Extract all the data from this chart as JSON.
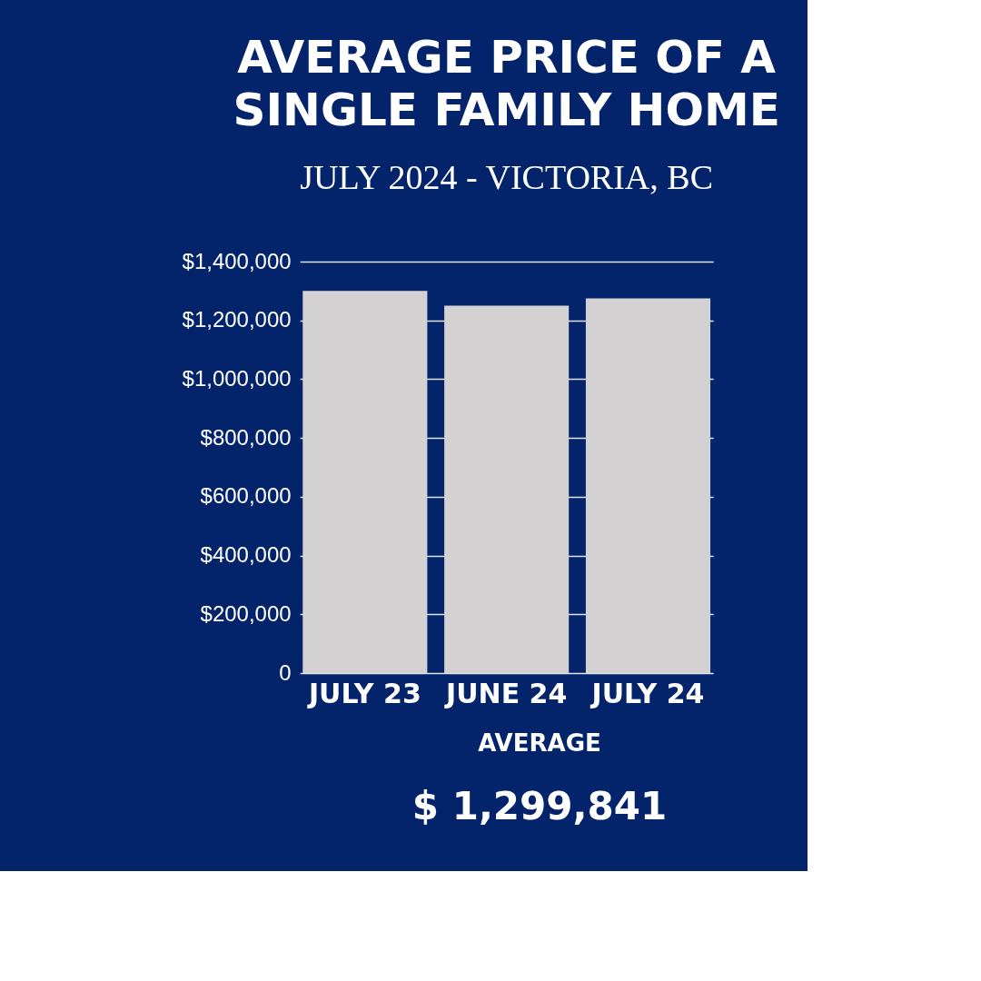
{
  "chart_data": {
    "type": "bar",
    "title": [
      "AVERAGE PRICE OF A",
      "SINGLE FAMILY HOME"
    ],
    "subtitle": "JULY 2024 - VICTORIA, BC",
    "categories": [
      "JULY 23",
      "JUNE 24",
      "JULY 24"
    ],
    "values": [
      1300000,
      1250000,
      1275000
    ],
    "color": "#d3d1d2",
    "ylim": [
      0,
      1400000
    ],
    "yticks": [
      {
        "value": 0,
        "label": "0"
      },
      {
        "value": 200000,
        "label": "$200,000"
      },
      {
        "value": 400000,
        "label": "$400,000"
      },
      {
        "value": 600000,
        "label": "$600,000"
      },
      {
        "value": 800000,
        "label": "$800,000"
      },
      {
        "value": 1000000,
        "label": "$1,000,000"
      },
      {
        "value": 1200000,
        "label": "$1,200,000"
      },
      {
        "value": 1400000,
        "label": "$1,400,000"
      }
    ],
    "grid": "y",
    "annotations": [
      "AVERAGE",
      "$ 1,299,841"
    ]
  }
}
